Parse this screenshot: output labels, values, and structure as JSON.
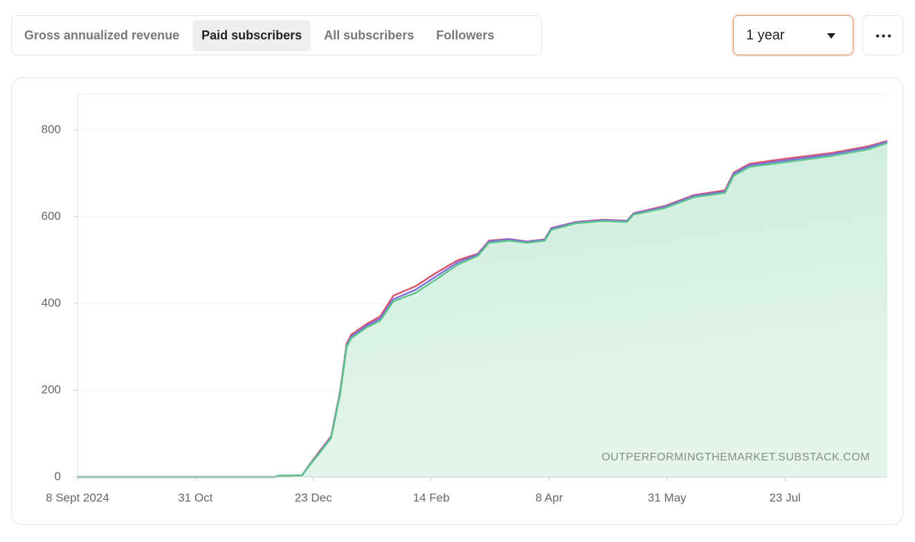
{
  "tabs": [
    "Gross annualized revenue",
    "Paid subscribers",
    "All subscribers",
    "Followers"
  ],
  "selected_tab": 1,
  "range_select": "1 year",
  "chart_data": {
    "type": "area",
    "watermark": "OUTPERFORMINGTHEMARKET.SUBSTACK.COM",
    "x": [
      0,
      89,
      90,
      101,
      104,
      108,
      114,
      118,
      121,
      123,
      130,
      136,
      142,
      152,
      161,
      171,
      180,
      185,
      194,
      202,
      210,
      213,
      224,
      236,
      247,
      250,
      264,
      277,
      291,
      295,
      302,
      317,
      339,
      355,
      364
    ],
    "series": [
      {
        "color": "#d9546a",
        "values": [
          0,
          0,
          3,
          4,
          27,
          54,
          94,
          196,
          308,
          328,
          353,
          370,
          418,
          440,
          470,
          500,
          515,
          545,
          549,
          543,
          548,
          574,
          588,
          593,
          591,
          608,
          625,
          650,
          661,
          702,
          722,
          733,
          747,
          762,
          775
        ]
      },
      {
        "color": "#7b6fe0",
        "values": [
          0,
          0,
          3,
          4,
          26,
          52,
          92,
          193,
          304,
          324,
          349,
          365,
          410,
          432,
          462,
          495,
          513,
          543,
          548,
          542,
          547,
          573,
          587,
          592,
          590,
          607,
          623,
          648,
          658,
          699,
          719,
          729,
          744,
          759,
          773
        ]
      },
      {
        "color": "#5cc48a",
        "values": [
          0,
          0,
          3,
          4,
          25,
          50,
          90,
          190,
          300,
          320,
          345,
          360,
          405,
          425,
          455,
          490,
          510,
          540,
          545,
          540,
          545,
          570,
          585,
          590,
          588,
          605,
          620,
          645,
          655,
          695,
          715,
          725,
          740,
          755,
          770
        ]
      }
    ],
    "fill_series": 2,
    "xlim": [
      0,
      364
    ],
    "xticks": [
      {
        "value": 0,
        "label": "8 Sept 2024"
      },
      {
        "value": 53,
        "label": "31 Oct"
      },
      {
        "value": 106,
        "label": "23 Dec"
      },
      {
        "value": 159,
        "label": "14 Feb"
      },
      {
        "value": 212,
        "label": "8 Apr"
      },
      {
        "value": 265,
        "label": "31 May"
      },
      {
        "value": 318,
        "label": "23 Jul"
      }
    ],
    "ylim": [
      0,
      883
    ],
    "yticks": [
      0,
      200,
      400,
      600,
      800
    ],
    "grid": true
  }
}
